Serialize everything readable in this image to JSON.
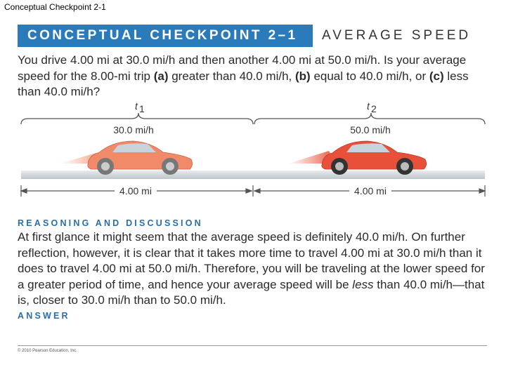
{
  "slide_title": "Conceptual Checkpoint 2-1",
  "header": {
    "label": "CONCEPTUAL CHECKPOINT 2–1",
    "topic": "AVERAGE SPEED"
  },
  "question": [
    "You drive 4.00 mi at 30.0 mi/h and then another 4.00 mi at 50.0 mi/h. Is your average speed for the 8.00-mi trip ",
    "(a)",
    " greater than 40.0 mi/h, ",
    "(b)",
    " equal to 40.0 mi/h, or ",
    "(c)",
    " less than 40.0 mi/h?"
  ],
  "figure": {
    "times": [
      {
        "var": "t",
        "sub": "1"
      },
      {
        "var": "t",
        "sub": "2"
      }
    ],
    "speeds": [
      "30.0 mi/h",
      "50.0 mi/h"
    ],
    "distances": [
      "4.00 mi",
      "4.00 mi"
    ]
  },
  "reasoning": {
    "heading": "REASONING AND DISCUSSION",
    "text": [
      "At first glance it might seem that the average speed is definitely 40.0 mi/h. On further reflection, however, it is clear that it takes more time to travel 4.00 mi at 30.0 mi/h than it does to travel 4.00 mi at 50.0 mi/h. Therefore, you will be traveling at the lower speed for a greater period of time, and hence your average speed will be ",
      "less",
      " than 40.0 mi/h—that is, closer to 30.0 mi/h than to 50.0 mi/h."
    ]
  },
  "answer_heading": "ANSWER",
  "footer": "© 2010 Pearson Education, Inc."
}
